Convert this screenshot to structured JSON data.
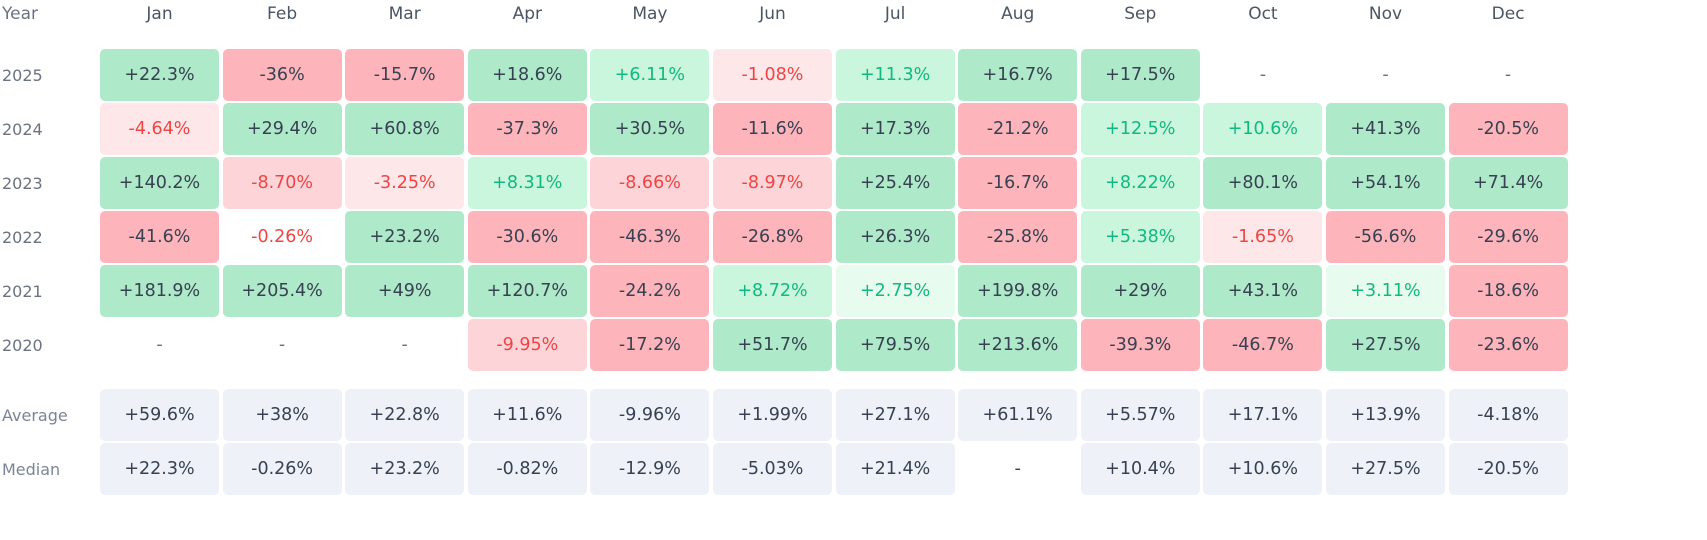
{
  "chart_data": {
    "type": "heatmap",
    "corner_label": "Year",
    "months": [
      "Jan",
      "Feb",
      "Mar",
      "Apr",
      "May",
      "Jun",
      "Jul",
      "Aug",
      "Sep",
      "Oct",
      "Nov",
      "Dec"
    ],
    "rows": [
      {
        "label": "2025",
        "values": [
          "+22.3%",
          "-36%",
          "-15.7%",
          "+18.6%",
          "+6.11%",
          "-1.08%",
          "+11.3%",
          "+16.7%",
          "+17.5%",
          "-",
          "-",
          "-"
        ]
      },
      {
        "label": "2024",
        "values": [
          "-4.64%",
          "+29.4%",
          "+60.8%",
          "-37.3%",
          "+30.5%",
          "-11.6%",
          "+17.3%",
          "-21.2%",
          "+12.5%",
          "+10.6%",
          "+41.3%",
          "-20.5%"
        ]
      },
      {
        "label": "2023",
        "values": [
          "+140.2%",
          "-8.70%",
          "-3.25%",
          "+8.31%",
          "-8.66%",
          "-8.97%",
          "+25.4%",
          "-16.7%",
          "+8.22%",
          "+80.1%",
          "+54.1%",
          "+71.4%"
        ]
      },
      {
        "label": "2022",
        "values": [
          "-41.6%",
          "-0.26%",
          "+23.2%",
          "-30.6%",
          "-46.3%",
          "-26.8%",
          "+26.3%",
          "-25.8%",
          "+5.38%",
          "-1.65%",
          "-56.6%",
          "-29.6%"
        ]
      },
      {
        "label": "2021",
        "values": [
          "+181.9%",
          "+205.4%",
          "+49%",
          "+120.7%",
          "-24.2%",
          "+8.72%",
          "+2.75%",
          "+199.8%",
          "+29%",
          "+43.1%",
          "+3.11%",
          "-18.6%"
        ]
      },
      {
        "label": "2020",
        "values": [
          "-",
          "-",
          "-",
          "-9.95%",
          "-17.2%",
          "+51.7%",
          "+79.5%",
          "+213.6%",
          "-39.3%",
          "-46.7%",
          "+27.5%",
          "-23.6%"
        ]
      }
    ],
    "stats": [
      {
        "label": "Average",
        "values": [
          "+59.6%",
          "+38%",
          "+22.8%",
          "+11.6%",
          "-9.96%",
          "+1.99%",
          "+27.1%",
          "+61.1%",
          "+5.57%",
          "+17.1%",
          "+13.9%",
          "-4.18%"
        ]
      },
      {
        "label": "Median",
        "values": [
          "+22.3%",
          "-0.26%",
          "+23.2%",
          "-0.82%",
          "-12.9%",
          "-5.03%",
          "+21.4%",
          "-",
          "+10.4%",
          "+10.6%",
          "+27.5%",
          "-20.5%"
        ]
      }
    ],
    "colors": {
      "strong_positive_bg": "#aee9c9",
      "mild_positive_bg": "#c9f6dc",
      "tiny_positive_bg": "#e7fbee",
      "mild_positive_text": "#10b981",
      "strong_negative_bg": "#fdb5bb",
      "mild_negative_bg": "#fdd4d7",
      "tiny_negative_bg": "#fee7e8",
      "mild_negative_text": "#ef4444",
      "neutral_text": "#374151",
      "stat_bg": "#eef2f8"
    }
  }
}
